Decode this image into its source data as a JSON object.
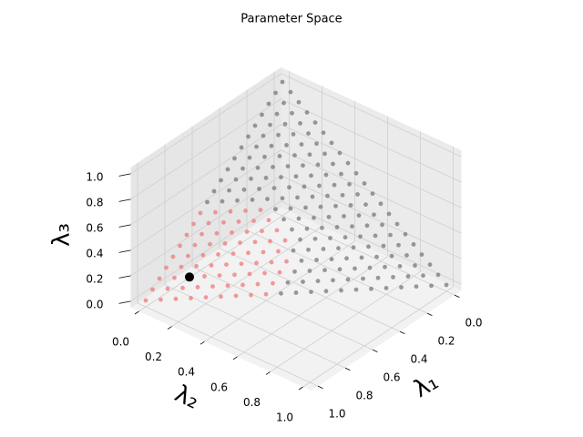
{
  "chart_data": {
    "type": "scatter3d",
    "title": "Parameter Space",
    "xlabel": "λ₁",
    "ylabel": "λ₂",
    "zlabel": "λ₃",
    "xlim": [
      -0.05,
      1.05
    ],
    "ylim": [
      -0.05,
      1.05
    ],
    "zlim": [
      -0.05,
      1.05
    ],
    "xticks": [
      {
        "value": 0,
        "label": "0.0"
      },
      0.2,
      0.4,
      0.6,
      0.8,
      {
        "value": 1,
        "label": "1.0"
      }
    ],
    "yticks": [
      {
        "value": 0,
        "label": "0.0"
      },
      0.2,
      0.4,
      0.6,
      0.8,
      {
        "value": 1,
        "label": "1.0"
      }
    ],
    "zticks": [
      {
        "value": 0,
        "label": "0.0"
      },
      0.2,
      0.4,
      0.6,
      0.8,
      {
        "value": 1,
        "label": "1.0"
      }
    ],
    "grid": true,
    "series": [
      {
        "color": "#808080",
        "points": [
          [
            0.55,
            0.45,
            0
          ],
          [
            0.5,
            0.5,
            0
          ],
          [
            0.45,
            0.55,
            0
          ],
          [
            0.4,
            0.6,
            0
          ],
          [
            0.35,
            0.65,
            0
          ],
          [
            0.3,
            0.7,
            0
          ],
          [
            0.25,
            0.75,
            0
          ],
          [
            0.2,
            0.8,
            0
          ],
          [
            0.15,
            0.85,
            0
          ],
          [
            0.1,
            0.9,
            0
          ],
          [
            0.05,
            0.95,
            0
          ],
          [
            0,
            1,
            0
          ],
          [
            0.5,
            0.45,
            0.05
          ],
          [
            0.45,
            0.5,
            0.05
          ],
          [
            0.4,
            0.55,
            0.05
          ],
          [
            0.35,
            0.6,
            0.05
          ],
          [
            0.3,
            0.65,
            0.05
          ],
          [
            0.25,
            0.7,
            0.05
          ],
          [
            0.2,
            0.75,
            0.05
          ],
          [
            0.15,
            0.8,
            0.05
          ],
          [
            0.1,
            0.85,
            0.05
          ],
          [
            0.05,
            0.9,
            0.05
          ],
          [
            0,
            0.95,
            0.05
          ],
          [
            0.45,
            0.45,
            0.1
          ],
          [
            0.4,
            0.5,
            0.1
          ],
          [
            0.35,
            0.55,
            0.1
          ],
          [
            0.3,
            0.6,
            0.1
          ],
          [
            0.25,
            0.65,
            0.1
          ],
          [
            0.2,
            0.7,
            0.1
          ],
          [
            0.15,
            0.75,
            0.1
          ],
          [
            0.1,
            0.8,
            0.1
          ],
          [
            0.05,
            0.85,
            0.1
          ],
          [
            0,
            0.9,
            0.1
          ],
          [
            0.4,
            0.45,
            0.15
          ],
          [
            0.35,
            0.5,
            0.15
          ],
          [
            0.3,
            0.55,
            0.15
          ],
          [
            0.25,
            0.6,
            0.15
          ],
          [
            0.2,
            0.65,
            0.15
          ],
          [
            0.15,
            0.7,
            0.15
          ],
          [
            0.1,
            0.75,
            0.15
          ],
          [
            0.05,
            0.8,
            0.15
          ],
          [
            0,
            0.85,
            0.15
          ],
          [
            0.4,
            0.4,
            0.2
          ],
          [
            0.35,
            0.45,
            0.2
          ],
          [
            0.3,
            0.5,
            0.2
          ],
          [
            0.25,
            0.55,
            0.2
          ],
          [
            0.2,
            0.6,
            0.2
          ],
          [
            0.15,
            0.65,
            0.2
          ],
          [
            0.1,
            0.7,
            0.2
          ],
          [
            0.05,
            0.75,
            0.2
          ],
          [
            0,
            0.8,
            0.2
          ],
          [
            0.35,
            0.4,
            0.25
          ],
          [
            0.3,
            0.45,
            0.25
          ],
          [
            0.25,
            0.5,
            0.25
          ],
          [
            0.2,
            0.55,
            0.25
          ],
          [
            0.15,
            0.6,
            0.25
          ],
          [
            0.1,
            0.65,
            0.25
          ],
          [
            0.05,
            0.7,
            0.25
          ],
          [
            0,
            0.75,
            0.25
          ],
          [
            0.35,
            0.35,
            0.3
          ],
          [
            0.3,
            0.4,
            0.3
          ],
          [
            0.25,
            0.45,
            0.3
          ],
          [
            0.2,
            0.5,
            0.3
          ],
          [
            0.15,
            0.55,
            0.3
          ],
          [
            0.1,
            0.6,
            0.3
          ],
          [
            0.05,
            0.65,
            0.3
          ],
          [
            0,
            0.7,
            0.3
          ],
          [
            0.35,
            0.3,
            0.35
          ],
          [
            0.3,
            0.35,
            0.35
          ],
          [
            0.25,
            0.4,
            0.35
          ],
          [
            0.2,
            0.45,
            0.35
          ],
          [
            0.15,
            0.5,
            0.35
          ],
          [
            0.1,
            0.55,
            0.35
          ],
          [
            0.05,
            0.6,
            0.35
          ],
          [
            0,
            0.65,
            0.35
          ],
          [
            0.35,
            0.25,
            0.4
          ],
          [
            0.3,
            0.3,
            0.4
          ],
          [
            0.25,
            0.35,
            0.4
          ],
          [
            0.2,
            0.4,
            0.4
          ],
          [
            0.15,
            0.45,
            0.4
          ],
          [
            0.1,
            0.5,
            0.4
          ],
          [
            0.05,
            0.55,
            0.4
          ],
          [
            0,
            0.6,
            0.4
          ],
          [
            0.55,
            0,
            0.45
          ],
          [
            0.5,
            0.05,
            0.45
          ],
          [
            0.45,
            0.1,
            0.45
          ],
          [
            0.4,
            0.15,
            0.45
          ],
          [
            0.35,
            0.2,
            0.45
          ],
          [
            0.3,
            0.25,
            0.45
          ],
          [
            0.25,
            0.3,
            0.45
          ],
          [
            0.2,
            0.35,
            0.45
          ],
          [
            0.15,
            0.4,
            0.45
          ],
          [
            0.1,
            0.45,
            0.45
          ],
          [
            0.05,
            0.5,
            0.45
          ],
          [
            0,
            0.55,
            0.45
          ],
          [
            0.5,
            0,
            0.5
          ],
          [
            0.45,
            0.05,
            0.5
          ],
          [
            0.4,
            0.1,
            0.5
          ],
          [
            0.35,
            0.15,
            0.5
          ],
          [
            0.3,
            0.2,
            0.5
          ],
          [
            0.25,
            0.25,
            0.5
          ],
          [
            0.2,
            0.3,
            0.5
          ],
          [
            0.15,
            0.35,
            0.5
          ],
          [
            0.1,
            0.4,
            0.5
          ],
          [
            0.05,
            0.45,
            0.5
          ],
          [
            0,
            0.5,
            0.5
          ],
          [
            0.45,
            0,
            0.55
          ],
          [
            0.4,
            0.05,
            0.55
          ],
          [
            0.35,
            0.1,
            0.55
          ],
          [
            0.3,
            0.15,
            0.55
          ],
          [
            0.25,
            0.2,
            0.55
          ],
          [
            0.2,
            0.25,
            0.55
          ],
          [
            0.15,
            0.3,
            0.55
          ],
          [
            0.1,
            0.35,
            0.55
          ],
          [
            0.05,
            0.4,
            0.55
          ],
          [
            0,
            0.45,
            0.55
          ],
          [
            0.4,
            0,
            0.6
          ],
          [
            0.35,
            0.05,
            0.6
          ],
          [
            0.3,
            0.1,
            0.6
          ],
          [
            0.25,
            0.15,
            0.6
          ],
          [
            0.2,
            0.2,
            0.6
          ],
          [
            0.15,
            0.25,
            0.6
          ],
          [
            0.1,
            0.3,
            0.6
          ],
          [
            0.05,
            0.35,
            0.6
          ],
          [
            0,
            0.4,
            0.6
          ],
          [
            0.35,
            0,
            0.65
          ],
          [
            0.3,
            0.05,
            0.65
          ],
          [
            0.25,
            0.1,
            0.65
          ],
          [
            0.2,
            0.15,
            0.65
          ],
          [
            0.15,
            0.2,
            0.65
          ],
          [
            0.1,
            0.25,
            0.65
          ],
          [
            0.05,
            0.3,
            0.65
          ],
          [
            0,
            0.35,
            0.65
          ],
          [
            0.3,
            0,
            0.7
          ],
          [
            0.25,
            0.05,
            0.7
          ],
          [
            0.2,
            0.1,
            0.7
          ],
          [
            0.15,
            0.15,
            0.7
          ],
          [
            0.1,
            0.2,
            0.7
          ],
          [
            0.05,
            0.25,
            0.7
          ],
          [
            0,
            0.3,
            0.7
          ],
          [
            0.25,
            0,
            0.75
          ],
          [
            0.2,
            0.05,
            0.75
          ],
          [
            0.15,
            0.1,
            0.75
          ],
          [
            0.1,
            0.15,
            0.75
          ],
          [
            0.05,
            0.2,
            0.75
          ],
          [
            0,
            0.25,
            0.75
          ],
          [
            0.2,
            0,
            0.8
          ],
          [
            0.15,
            0.05,
            0.8
          ],
          [
            0.1,
            0.1,
            0.8
          ],
          [
            0.05,
            0.15,
            0.8
          ],
          [
            0,
            0.2,
            0.8
          ],
          [
            0.15,
            0,
            0.85
          ],
          [
            0.1,
            0.05,
            0.85
          ],
          [
            0.05,
            0.1,
            0.85
          ],
          [
            0,
            0.15,
            0.85
          ],
          [
            0.1,
            0,
            0.9
          ],
          [
            0.05,
            0.05,
            0.9
          ],
          [
            0,
            0.1,
            0.9
          ],
          [
            0.05,
            0,
            0.95
          ],
          [
            0,
            0.05,
            0.95
          ],
          [
            0,
            0,
            1
          ]
        ]
      },
      {
        "color": "#f08080",
        "points": [
          [
            1,
            0,
            0
          ],
          [
            0.95,
            0.05,
            0
          ],
          [
            0.9,
            0.1,
            0
          ],
          [
            0.85,
            0.15,
            0
          ],
          [
            0.8,
            0.2,
            0
          ],
          [
            0.75,
            0.25,
            0
          ],
          [
            0.7,
            0.3,
            0
          ],
          [
            0.65,
            0.35,
            0
          ],
          [
            0.6,
            0.4,
            0
          ],
          [
            0.95,
            0,
            0.05
          ],
          [
            0.9,
            0.05,
            0.05
          ],
          [
            0.85,
            0.1,
            0.05
          ],
          [
            0.8,
            0.15,
            0.05
          ],
          [
            0.75,
            0.2,
            0.05
          ],
          [
            0.7,
            0.25,
            0.05
          ],
          [
            0.65,
            0.3,
            0.05
          ],
          [
            0.6,
            0.35,
            0.05
          ],
          [
            0.55,
            0.4,
            0.05
          ],
          [
            0.9,
            0,
            0.1
          ],
          [
            0.85,
            0.05,
            0.1
          ],
          [
            0.8,
            0.1,
            0.1
          ],
          [
            0.75,
            0.15,
            0.1
          ],
          [
            0.7,
            0.2,
            0.1
          ],
          [
            0.65,
            0.25,
            0.1
          ],
          [
            0.6,
            0.3,
            0.1
          ],
          [
            0.55,
            0.35,
            0.1
          ],
          [
            0.5,
            0.4,
            0.1
          ],
          [
            0.85,
            0,
            0.15
          ],
          [
            0.8,
            0.05,
            0.15
          ],
          [
            0.75,
            0.1,
            0.15
          ],
          [
            0.7,
            0.15,
            0.15
          ],
          [
            0.65,
            0.2,
            0.15
          ],
          [
            0.6,
            0.25,
            0.15
          ],
          [
            0.55,
            0.3,
            0.15
          ],
          [
            0.5,
            0.35,
            0.15
          ],
          [
            0.45,
            0.4,
            0.15
          ],
          [
            0.8,
            0,
            0.2
          ],
          [
            0.75,
            0.05,
            0.2
          ],
          [
            0.7,
            0.1,
            0.2
          ],
          [
            0.65,
            0.15,
            0.2
          ],
          [
            0.6,
            0.2,
            0.2
          ],
          [
            0.55,
            0.25,
            0.2
          ],
          [
            0.5,
            0.3,
            0.2
          ],
          [
            0.45,
            0.35,
            0.2
          ],
          [
            0.75,
            0,
            0.25
          ],
          [
            0.7,
            0.05,
            0.25
          ],
          [
            0.65,
            0.1,
            0.25
          ],
          [
            0.6,
            0.15,
            0.25
          ],
          [
            0.55,
            0.2,
            0.25
          ],
          [
            0.5,
            0.25,
            0.25
          ],
          [
            0.45,
            0.3,
            0.25
          ],
          [
            0.4,
            0.35,
            0.25
          ],
          [
            0.7,
            0,
            0.3
          ],
          [
            0.65,
            0.05,
            0.3
          ],
          [
            0.6,
            0.1,
            0.3
          ],
          [
            0.55,
            0.15,
            0.3
          ],
          [
            0.5,
            0.2,
            0.3
          ],
          [
            0.45,
            0.25,
            0.3
          ],
          [
            0.4,
            0.3,
            0.3
          ],
          [
            0.65,
            0,
            0.35
          ],
          [
            0.6,
            0.05,
            0.35
          ],
          [
            0.55,
            0.1,
            0.35
          ],
          [
            0.5,
            0.15,
            0.35
          ],
          [
            0.45,
            0.2,
            0.35
          ],
          [
            0.4,
            0.25,
            0.35
          ],
          [
            0.6,
            0,
            0.4
          ],
          [
            0.55,
            0.05,
            0.4
          ],
          [
            0.5,
            0.1,
            0.4
          ],
          [
            0.45,
            0.15,
            0.4
          ],
          [
            0.4,
            0.2,
            0.4
          ]
        ]
      },
      {
        "color": "#000000",
        "points": [
          [
            0.8,
            0.1,
            0.1
          ]
        ]
      }
    ]
  }
}
